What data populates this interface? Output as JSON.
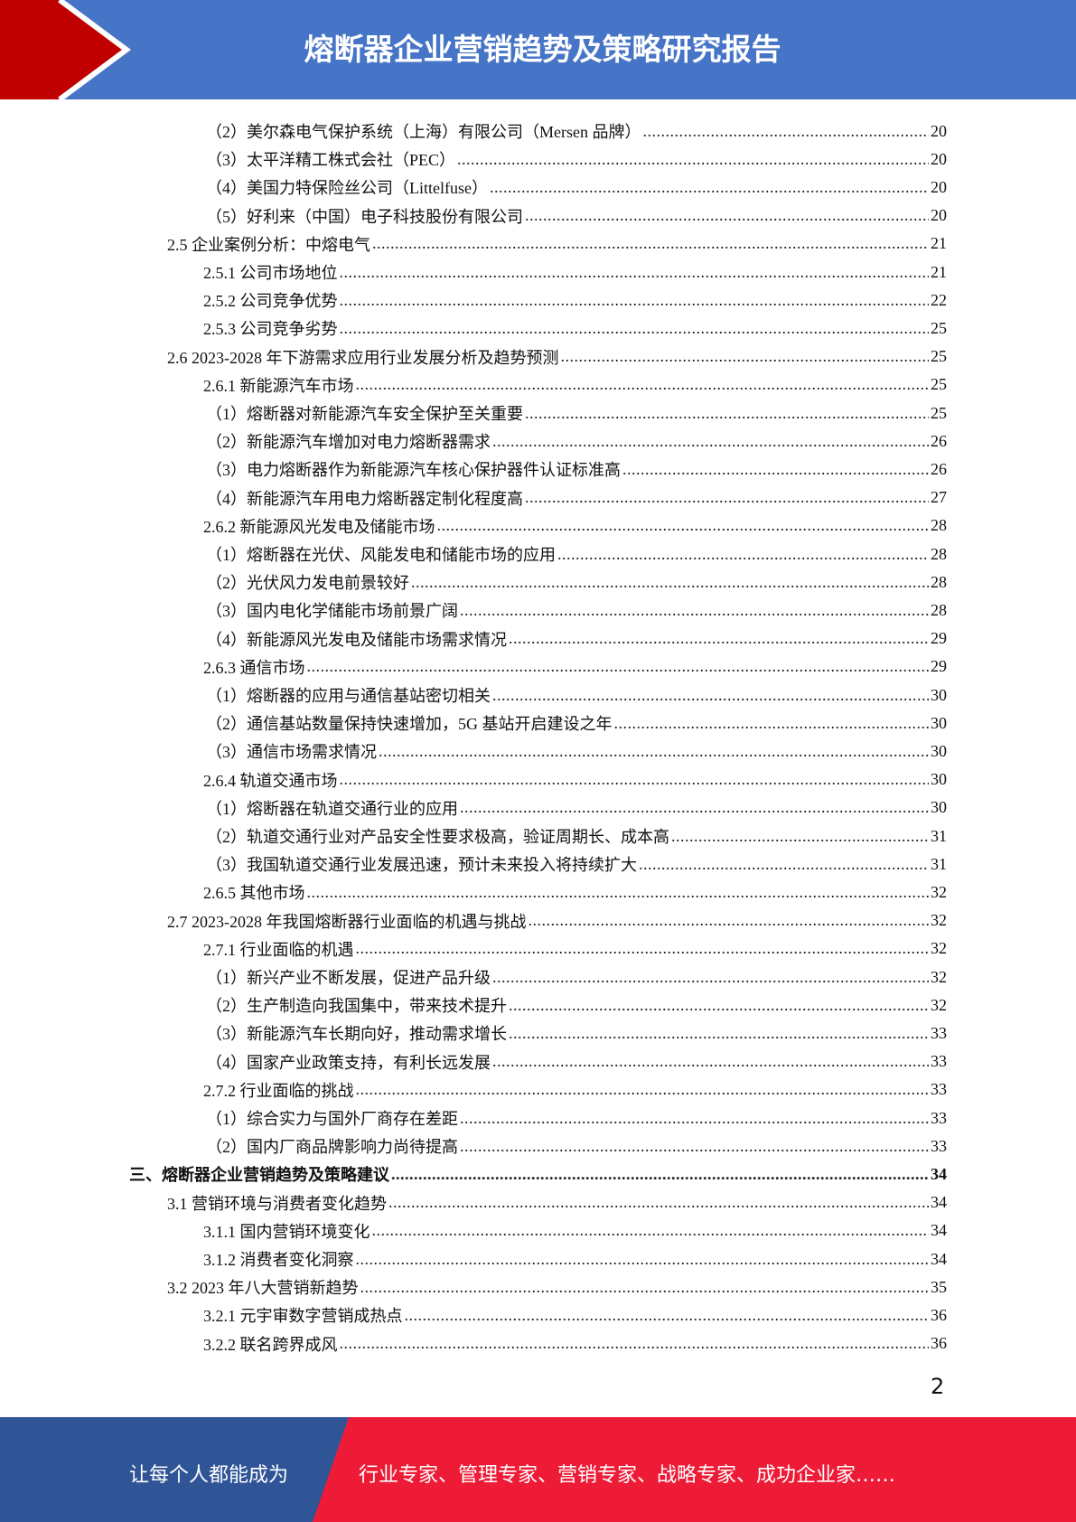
{
  "header": {
    "title": "熔断器企业营销趋势及策略研究报告",
    "colors": {
      "band": "#4674c6",
      "chevron": "#c00000"
    }
  },
  "toc": [
    {
      "level": 4,
      "text": "（2）美尔森电气保护系统（上海）有限公司（Mersen 品牌）",
      "page": "20"
    },
    {
      "level": 4,
      "text": "（3）太平洋精工株式会社（PEC）",
      "page": "20"
    },
    {
      "level": 4,
      "text": "（4）美国力特保险丝公司（Littelfuse）",
      "page": "20"
    },
    {
      "level": 4,
      "text": "（5）好利来（中国）电子科技股份有限公司",
      "page": "20"
    },
    {
      "level": 2,
      "text": "2.5  企业案例分析：中熔电气",
      "page": "21"
    },
    {
      "level": 3,
      "text": "2.5.1  公司市场地位",
      "page": "21"
    },
    {
      "level": 3,
      "text": "2.5.2  公司竞争优势",
      "page": "22"
    },
    {
      "level": 3,
      "text": "2.5.3  公司竞争劣势",
      "page": "25"
    },
    {
      "level": 2,
      "text": "2.6 2023-2028 年下游需求应用行业发展分析及趋势预测",
      "page": "25"
    },
    {
      "level": 3,
      "text": "2.6.1  新能源汽车市场",
      "page": "25"
    },
    {
      "level": 4,
      "text": "（1）熔断器对新能源汽车安全保护至关重要",
      "page": "25"
    },
    {
      "level": 4,
      "text": "（2）新能源汽车增加对电力熔断器需求",
      "page": "26"
    },
    {
      "level": 4,
      "text": "（3）电力熔断器作为新能源汽车核心保护器件认证标准高",
      "page": "26"
    },
    {
      "level": 4,
      "text": "（4）新能源汽车用电力熔断器定制化程度高",
      "page": "27"
    },
    {
      "level": 3,
      "text": "2.6.2  新能源风光发电及储能市场",
      "page": "28"
    },
    {
      "level": 4,
      "text": "（1）熔断器在光伏、风能发电和储能市场的应用",
      "page": "28"
    },
    {
      "level": 4,
      "text": "（2）光伏风力发电前景较好",
      "page": "28"
    },
    {
      "level": 4,
      "text": "（3）国内电化学储能市场前景广阔",
      "page": "28"
    },
    {
      "level": 4,
      "text": "（4）新能源风光发电及储能市场需求情况",
      "page": "29"
    },
    {
      "level": 3,
      "text": "2.6.3  通信市场",
      "page": "29"
    },
    {
      "level": 4,
      "text": "（1）熔断器的应用与通信基站密切相关",
      "page": "30"
    },
    {
      "level": 4,
      "text": "（2）通信基站数量保持快速增加，5G 基站开启建设之年",
      "page": "30"
    },
    {
      "level": 4,
      "text": "（3）通信市场需求情况",
      "page": "30"
    },
    {
      "level": 3,
      "text": "2.6.4  轨道交通市场",
      "page": "30"
    },
    {
      "level": 4,
      "text": "（1）熔断器在轨道交通行业的应用",
      "page": "30"
    },
    {
      "level": 4,
      "text": "（2）轨道交通行业对产品安全性要求极高，验证周期长、成本高",
      "page": "31"
    },
    {
      "level": 4,
      "text": "（3）我国轨道交通行业发展迅速，预计未来投入将持续扩大",
      "page": "31"
    },
    {
      "level": 3,
      "text": "2.6.5  其他市场",
      "page": "32"
    },
    {
      "level": 2,
      "text": "2.7 2023-2028 年我国熔断器行业面临的机遇与挑战",
      "page": "32"
    },
    {
      "level": 3,
      "text": "2.7.1  行业面临的机遇",
      "page": "32"
    },
    {
      "level": 4,
      "text": "（1）新兴产业不断发展，促进产品升级",
      "page": "32"
    },
    {
      "level": 4,
      "text": "（2）生产制造向我国集中，带来技术提升",
      "page": "32"
    },
    {
      "level": 4,
      "text": "（3）新能源汽车长期向好，推动需求增长",
      "page": "33"
    },
    {
      "level": 4,
      "text": "（4）国家产业政策支持，有利长远发展",
      "page": "33"
    },
    {
      "level": 3,
      "text": "2.7.2  行业面临的挑战",
      "page": "33"
    },
    {
      "level": 4,
      "text": "（1）综合实力与国外厂商存在差距",
      "page": "33"
    },
    {
      "level": 4,
      "text": "（2）国内厂商品牌影响力尚待提高",
      "page": "33"
    },
    {
      "level": 1,
      "text": "三、熔断器企业营销趋势及策略建议",
      "page": "34"
    },
    {
      "level": 2,
      "text": "3.1 营销环境与消费者变化趋势",
      "page": "34"
    },
    {
      "level": 3,
      "text": "3.1.1  国内营销环境变化",
      "page": "34"
    },
    {
      "level": 3,
      "text": "3.1.2  消费者变化洞察",
      "page": "34"
    },
    {
      "level": 2,
      "text": "3.2 2023 年八大营销新趋势",
      "page": "35"
    },
    {
      "level": 3,
      "text": "3.2.1  元宇审数字营销成热点",
      "page": "36"
    },
    {
      "level": 3,
      "text": "3.2.2  联名跨界成风",
      "page": "36"
    }
  ],
  "page_number": "2",
  "footer": {
    "slogan_left": "让每个人都能成为",
    "slogan_right": "行业专家、管理专家、营销专家、战略专家、成功企业家……",
    "colors": {
      "left": "#2f5597",
      "right": "#ee1b36"
    }
  }
}
